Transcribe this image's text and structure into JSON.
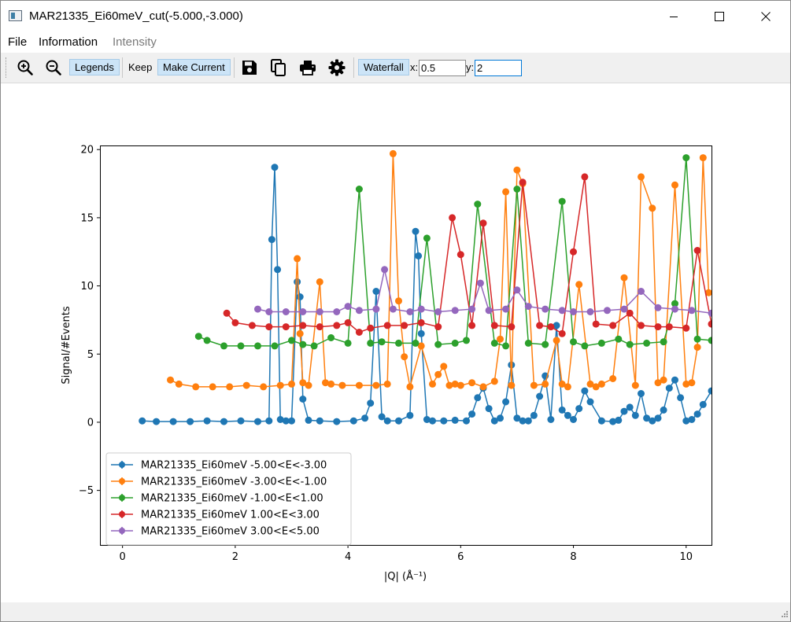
{
  "window": {
    "title": "MAR21335_Ei60meV_cut(-5.000,-3.000)"
  },
  "menu": {
    "items": [
      {
        "label": "File",
        "enabled": true
      },
      {
        "label": "Information",
        "enabled": true
      },
      {
        "label": "Intensity",
        "enabled": false
      }
    ]
  },
  "toolbar": {
    "legends_label": "Legends",
    "keep_label": "Keep",
    "make_current_label": "Make Current",
    "waterfall_label": "Waterfall",
    "x_label": "x:",
    "x_value": "0.5",
    "y_label": "y:",
    "y_value": "2",
    "icons": [
      "zoom-in-icon",
      "zoom-out-icon",
      "save-icon",
      "copy-icon",
      "print-icon",
      "settings-icon"
    ]
  },
  "chart_data": {
    "type": "line",
    "xlabel": "|Q| (Å⁻¹)",
    "ylabel": "Signal/#Events",
    "xlim": [
      -0.4,
      10.45
    ],
    "ylim": [
      -9,
      20.3
    ],
    "xticks": [
      0,
      2,
      4,
      6,
      8,
      10
    ],
    "yticks": [
      -5,
      0,
      5,
      10,
      15,
      20
    ],
    "grid": false,
    "legend_position": "lower-left",
    "markers": "circle with error bars",
    "waterfall": {
      "x_offset": 0.5,
      "y_offset": 2
    },
    "series": [
      {
        "name": "MAR21335_Ei60meV -5.00<E<-3.00",
        "color": "#1f77b4",
        "x": [
          0.35,
          0.6,
          0.9,
          1.2,
          1.5,
          1.8,
          2.1,
          2.4,
          2.6,
          2.65,
          2.7,
          2.75,
          2.8,
          2.9,
          3.0,
          3.1,
          3.15,
          3.2,
          3.3,
          3.5,
          3.8,
          4.1,
          4.3,
          4.4,
          4.5,
          4.6,
          4.7,
          4.9,
          5.1,
          5.2,
          5.25,
          5.3,
          5.4,
          5.5,
          5.7,
          5.9,
          6.1,
          6.2,
          6.3,
          6.4,
          6.5,
          6.6,
          6.7,
          6.8,
          6.9,
          7.0,
          7.1,
          7.2,
          7.3,
          7.4,
          7.5,
          7.6,
          7.7,
          7.8,
          7.9,
          8.0,
          8.1,
          8.2,
          8.3,
          8.5,
          8.7,
          8.8,
          8.9,
          9.0,
          9.1,
          9.2,
          9.3,
          9.4,
          9.5,
          9.6,
          9.7,
          9.8,
          9.9,
          10.0,
          10.1,
          10.2,
          10.3,
          10.45
        ],
        "y": [
          0.1,
          0.05,
          0.05,
          0.05,
          0.1,
          0.05,
          0.1,
          0.05,
          0.1,
          13.4,
          18.7,
          11.2,
          0.2,
          0.1,
          0.1,
          10.3,
          9.2,
          1.7,
          0.15,
          0.1,
          0.05,
          0.1,
          0.3,
          1.4,
          9.6,
          0.4,
          0.1,
          0.1,
          0.5,
          14.0,
          12.2,
          6.5,
          0.2,
          0.1,
          0.1,
          0.15,
          0.1,
          0.6,
          1.8,
          2.5,
          1.0,
          0.1,
          0.3,
          1.5,
          4.2,
          0.3,
          0.1,
          0.1,
          0.5,
          1.9,
          3.4,
          0.2,
          7.1,
          0.9,
          0.5,
          0.2,
          1.0,
          2.3,
          1.5,
          0.1,
          0.05,
          0.15,
          0.8,
          1.1,
          0.5,
          2.1,
          0.3,
          0.1,
          0.3,
          0.9,
          2.5,
          3.1,
          1.8,
          0.1,
          0.2,
          0.6,
          1.3,
          2.3
        ]
      },
      {
        "name": "MAR21335_Ei60meV -3.00<E<-1.00",
        "color": "#ff7f0e",
        "x": [
          0.85,
          1.0,
          1.3,
          1.6,
          1.9,
          2.2,
          2.5,
          2.8,
          3.0,
          3.1,
          3.15,
          3.2,
          3.3,
          3.5,
          3.6,
          3.7,
          3.9,
          4.2,
          4.5,
          4.7,
          4.8,
          4.9,
          5.0,
          5.1,
          5.3,
          5.5,
          5.6,
          5.7,
          5.8,
          5.9,
          6.0,
          6.2,
          6.4,
          6.6,
          6.7,
          6.8,
          6.9,
          7.0,
          7.1,
          7.3,
          7.5,
          7.7,
          7.8,
          7.9,
          8.1,
          8.3,
          8.4,
          8.5,
          8.7,
          8.9,
          9.1,
          9.2,
          9.4,
          9.5,
          9.6,
          9.8,
          10.0,
          10.1,
          10.2,
          10.3,
          10.4
        ],
        "y": [
          3.1,
          2.8,
          2.6,
          2.6,
          2.6,
          2.7,
          2.6,
          2.7,
          2.8,
          12.0,
          6.5,
          2.9,
          2.7,
          10.3,
          2.9,
          2.8,
          2.7,
          2.7,
          2.7,
          2.8,
          19.7,
          8.9,
          4.8,
          2.6,
          5.6,
          2.8,
          3.5,
          4.1,
          2.7,
          2.8,
          2.7,
          2.9,
          2.6,
          3.0,
          6.1,
          16.9,
          2.7,
          18.5,
          17.5,
          2.7,
          2.8,
          6.0,
          2.8,
          2.6,
          10.1,
          2.8,
          2.6,
          2.8,
          3.2,
          10.6,
          2.7,
          18.0,
          15.7,
          2.9,
          3.1,
          17.4,
          2.8,
          2.9,
          5.5,
          19.4,
          9.5
        ]
      },
      {
        "name": "MAR21335_Ei60meV -1.00<E<1.00",
        "color": "#2ca02c",
        "x": [
          1.35,
          1.5,
          1.8,
          2.1,
          2.4,
          2.7,
          3.0,
          3.2,
          3.4,
          3.7,
          4.0,
          4.2,
          4.4,
          4.6,
          4.9,
          5.2,
          5.4,
          5.6,
          5.9,
          6.1,
          6.3,
          6.6,
          6.8,
          7.0,
          7.2,
          7.5,
          7.8,
          8.0,
          8.2,
          8.5,
          8.8,
          9.0,
          9.3,
          9.6,
          9.8,
          10.0,
          10.2,
          10.45
        ],
        "y": [
          6.3,
          6.0,
          5.6,
          5.6,
          5.6,
          5.6,
          6.0,
          5.7,
          5.6,
          6.2,
          5.8,
          17.1,
          5.8,
          5.9,
          5.8,
          5.8,
          13.5,
          5.7,
          5.8,
          6.0,
          16.0,
          5.8,
          5.6,
          17.1,
          5.8,
          5.7,
          16.2,
          5.9,
          5.6,
          5.8,
          6.1,
          5.7,
          5.8,
          5.9,
          8.7,
          19.4,
          6.1,
          6.0
        ]
      },
      {
        "name": "MAR21335_Ei60meV 1.00<E<3.00",
        "color": "#d62728",
        "x": [
          1.85,
          2.0,
          2.3,
          2.6,
          2.9,
          3.2,
          3.5,
          3.8,
          4.0,
          4.2,
          4.4,
          4.7,
          5.0,
          5.3,
          5.6,
          5.85,
          6.0,
          6.2,
          6.4,
          6.6,
          6.9,
          7.1,
          7.4,
          7.6,
          7.8,
          8.0,
          8.2,
          8.4,
          8.7,
          9.0,
          9.2,
          9.5,
          9.7,
          10.0,
          10.2,
          10.45
        ],
        "y": [
          8.0,
          7.3,
          7.1,
          7.0,
          7.0,
          7.1,
          7.0,
          7.1,
          7.3,
          6.6,
          6.9,
          7.1,
          7.1,
          7.3,
          7.0,
          15.0,
          12.3,
          7.1,
          14.6,
          7.1,
          7.0,
          17.6,
          7.1,
          7.0,
          6.5,
          12.5,
          18.0,
          7.2,
          7.1,
          8.0,
          7.1,
          7.0,
          7.0,
          6.9,
          12.6,
          7.2
        ]
      },
      {
        "name": "MAR21335_Ei60meV 3.00<E<5.00",
        "color": "#9467bd",
        "x": [
          2.4,
          2.6,
          2.9,
          3.2,
          3.5,
          3.8,
          4.0,
          4.2,
          4.5,
          4.65,
          4.8,
          5.1,
          5.3,
          5.6,
          5.9,
          6.2,
          6.35,
          6.5,
          6.8,
          7.0,
          7.2,
          7.5,
          7.8,
          8.0,
          8.3,
          8.6,
          8.9,
          9.2,
          9.5,
          9.8,
          10.1,
          10.45
        ],
        "y": [
          8.3,
          8.1,
          8.1,
          8.1,
          8.1,
          8.1,
          8.5,
          8.2,
          8.3,
          11.2,
          8.3,
          8.1,
          8.3,
          8.1,
          8.2,
          8.3,
          10.2,
          8.2,
          8.3,
          9.7,
          8.5,
          8.3,
          8.2,
          8.1,
          8.1,
          8.2,
          8.3,
          9.6,
          8.4,
          8.3,
          8.2,
          8.0
        ]
      }
    ]
  }
}
